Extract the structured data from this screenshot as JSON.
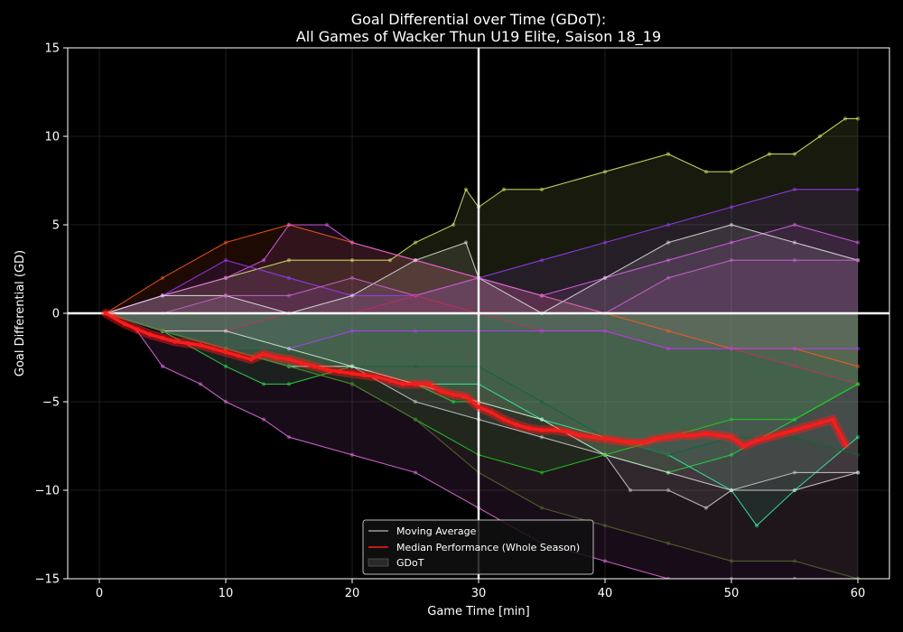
{
  "chart_data": {
    "type": "line",
    "title": "Goal Differential over Time (GDoT):",
    "subtitle": "All Games of Wacker Thun U19 Elite, Saison 18_19",
    "xlabel": "Game Time [min]",
    "ylabel": "Goal Differential (GD)",
    "xlim": [
      -2.5,
      62.5
    ],
    "ylim": [
      -15,
      15
    ],
    "xticks": [
      0,
      10,
      20,
      30,
      40,
      50,
      60
    ],
    "yticks": [
      -15,
      -10,
      -5,
      0,
      5,
      10,
      15
    ],
    "grid": true,
    "legend_position": "lower center",
    "halftime_x": 30,
    "legend": [
      {
        "label": "Moving Average",
        "color": "#9a9a9a",
        "kind": "line"
      },
      {
        "label": "Median Performance (Whole Season)",
        "color": "#ff1a1a",
        "kind": "line"
      },
      {
        "label": "GDoT",
        "color": "#2a2a2a",
        "kind": "patch"
      }
    ],
    "median": {
      "name": "Median Performance (Whole Season)",
      "color": "#ff1a1a",
      "x": [
        0.5,
        2,
        3,
        4,
        5,
        6,
        7,
        8,
        9,
        10,
        11,
        12,
        13,
        14,
        15,
        16,
        17,
        18,
        19,
        20,
        21,
        22,
        23,
        24,
        25,
        26,
        27,
        28,
        29,
        30,
        31,
        32,
        33,
        34,
        35,
        36,
        37,
        38,
        39,
        40,
        41,
        42,
        43,
        44,
        45,
        46,
        47,
        48,
        49,
        50,
        51,
        52,
        53,
        54,
        55,
        56,
        57,
        58,
        59
      ],
      "y": [
        0,
        -0.6,
        -0.9,
        -1.2,
        -1.4,
        -1.6,
        -1.7,
        -1.8,
        -2.0,
        -2.2,
        -2.4,
        -2.6,
        -2.3,
        -2.5,
        -2.6,
        -2.8,
        -3.0,
        -3.2,
        -3.3,
        -3.4,
        -3.5,
        -3.6,
        -3.8,
        -4.0,
        -4.0,
        -4.0,
        -4.4,
        -4.6,
        -4.7,
        -5.3,
        -5.6,
        -6.0,
        -6.3,
        -6.5,
        -6.6,
        -6.6,
        -6.7,
        -6.9,
        -7.0,
        -7.1,
        -7.2,
        -7.3,
        -7.3,
        -7.1,
        -7.0,
        -6.9,
        -6.9,
        -6.8,
        -6.9,
        -7.0,
        -7.5,
        -7.2,
        -7.0,
        -6.8,
        -6.6,
        -6.4,
        -6.2,
        -6.0,
        -7.4
      ]
    },
    "series": [
      {
        "color": "#d6f06a",
        "x": [
          0.5,
          5,
          10,
          15,
          20,
          23,
          25,
          28,
          29,
          30,
          32,
          35,
          40,
          45,
          48,
          50,
          53,
          55,
          57,
          59,
          60
        ],
        "y": [
          0,
          1,
          2,
          3,
          3,
          3,
          4,
          5,
          7,
          6,
          7,
          7,
          8,
          9,
          8,
          8,
          9,
          9,
          10,
          11,
          11
        ]
      },
      {
        "color": "#ff5a1a",
        "x": [
          0.5,
          5,
          10,
          15,
          20,
          25,
          30,
          35,
          40,
          45,
          50,
          55,
          60
        ],
        "y": [
          0,
          2,
          4,
          5,
          4,
          3,
          2,
          1,
          0,
          -1,
          -2,
          -2,
          -3
        ]
      },
      {
        "color": "#e060f0",
        "x": [
          0.5,
          5,
          10,
          13,
          15,
          18,
          20,
          25,
          30,
          35,
          40,
          45,
          50,
          55,
          60
        ],
        "y": [
          0,
          1,
          2,
          3,
          5,
          5,
          4,
          3,
          2,
          1,
          2,
          3,
          4,
          5,
          4
        ]
      },
      {
        "color": "#9b3cff",
        "x": [
          0.5,
          5,
          10,
          15,
          20,
          25,
          30,
          35,
          40,
          45,
          50,
          55,
          60
        ],
        "y": [
          0,
          1,
          3,
          2,
          1,
          1,
          2,
          3,
          4,
          5,
          6,
          7,
          7
        ]
      },
      {
        "color": "#e0e0e0",
        "x": [
          0.5,
          5,
          10,
          15,
          20,
          25,
          29,
          30,
          35,
          40,
          45,
          50,
          55,
          60
        ],
        "y": [
          0,
          1,
          1,
          0,
          1,
          3,
          4,
          2,
          0,
          2,
          4,
          5,
          4,
          3
        ]
      },
      {
        "color": "#cc66cc",
        "x": [
          0.5,
          5,
          10,
          15,
          20,
          25,
          30,
          35,
          40,
          45,
          50,
          55,
          60
        ],
        "y": [
          0,
          0,
          1,
          1,
          2,
          1,
          2,
          1,
          0,
          2,
          3,
          3,
          3
        ]
      },
      {
        "color": "#c03060",
        "x": [
          0.5,
          5,
          10,
          15,
          20,
          25,
          30,
          35,
          40,
          45,
          50,
          55,
          60
        ],
        "y": [
          0,
          -1,
          -1,
          0,
          0,
          1,
          0,
          -1,
          -1,
          -2,
          -2,
          -3,
          -4
        ]
      },
      {
        "color": "#b040ff",
        "x": [
          0.5,
          5,
          10,
          15,
          20,
          25,
          30,
          35,
          40,
          45,
          50,
          55,
          60
        ],
        "y": [
          0,
          -1,
          -2,
          -2,
          -1,
          -1,
          -1,
          -1,
          -1,
          -2,
          -2,
          -2,
          -2
        ]
      },
      {
        "color": "#22dd44",
        "x": [
          0.5,
          5,
          10,
          13,
          15,
          20,
          25,
          28,
          30,
          35,
          40,
          45,
          50,
          55,
          60
        ],
        "y": [
          0,
          -1,
          -3,
          -4,
          -4,
          -3,
          -4,
          -5,
          -5,
          -6,
          -8,
          -9,
          -8,
          -6,
          -4
        ]
      },
      {
        "color": "#30f0a0",
        "x": [
          0.5,
          5,
          10,
          15,
          20,
          25,
          30,
          35,
          40,
          45,
          50,
          52,
          55,
          60
        ],
        "y": [
          0,
          -1,
          -2,
          -3,
          -3,
          -4,
          -4,
          -6,
          -7,
          -8,
          -10,
          -12,
          -10,
          -7
        ]
      },
      {
        "color": "#116633",
        "x": [
          0.5,
          5,
          10,
          15,
          20,
          25,
          30,
          35,
          40,
          45,
          50,
          55,
          60
        ],
        "y": [
          0,
          -1,
          -2,
          -2,
          -3,
          -3,
          -3,
          -5,
          -7,
          -8,
          -7,
          -7,
          -8
        ]
      },
      {
        "color": "#cccccc",
        "x": [
          0.5,
          5,
          10,
          15,
          20,
          25,
          30,
          35,
          40,
          42,
          45,
          48,
          50,
          55,
          60
        ],
        "y": [
          0,
          -1,
          -2,
          -3,
          -3,
          -5,
          -6,
          -7,
          -8,
          -10,
          -10,
          -11,
          -10,
          -9,
          -9
        ]
      },
      {
        "color": "#dddddd",
        "x": [
          0.5,
          5,
          10,
          15,
          20,
          25,
          30,
          35,
          40,
          45,
          50,
          55,
          60
        ],
        "y": [
          0,
          -1,
          -1,
          -2,
          -3,
          -4,
          -5,
          -6,
          -8,
          -9,
          -10,
          -10,
          -9
        ]
      },
      {
        "color": "#22cc22",
        "x": [
          0.5,
          5,
          10,
          15,
          20,
          25,
          30,
          35,
          40,
          45,
          50,
          55,
          60
        ],
        "y": [
          0,
          -1,
          -2,
          -3,
          -4,
          -6,
          -8,
          -9,
          -8,
          -7,
          -6,
          -6,
          -4
        ]
      },
      {
        "color": "#e070e0",
        "x": [
          0.5,
          3,
          5,
          8,
          10,
          13,
          15,
          20,
          25,
          30,
          35,
          40,
          45,
          50,
          55,
          60
        ],
        "y": [
          0,
          -1,
          -3,
          -4,
          -5,
          -6,
          -7,
          -8,
          -9,
          -11,
          -13,
          -14,
          -15,
          -15,
          -15,
          -15
        ]
      },
      {
        "color": "#556b2f",
        "x": [
          0.5,
          5,
          10,
          15,
          20,
          25,
          30,
          35,
          40,
          45,
          50,
          55,
          60
        ],
        "y": [
          0,
          -1,
          -2,
          -3,
          -4,
          -6,
          -9,
          -11,
          -12,
          -13,
          -14,
          -14,
          -15
        ]
      }
    ]
  }
}
